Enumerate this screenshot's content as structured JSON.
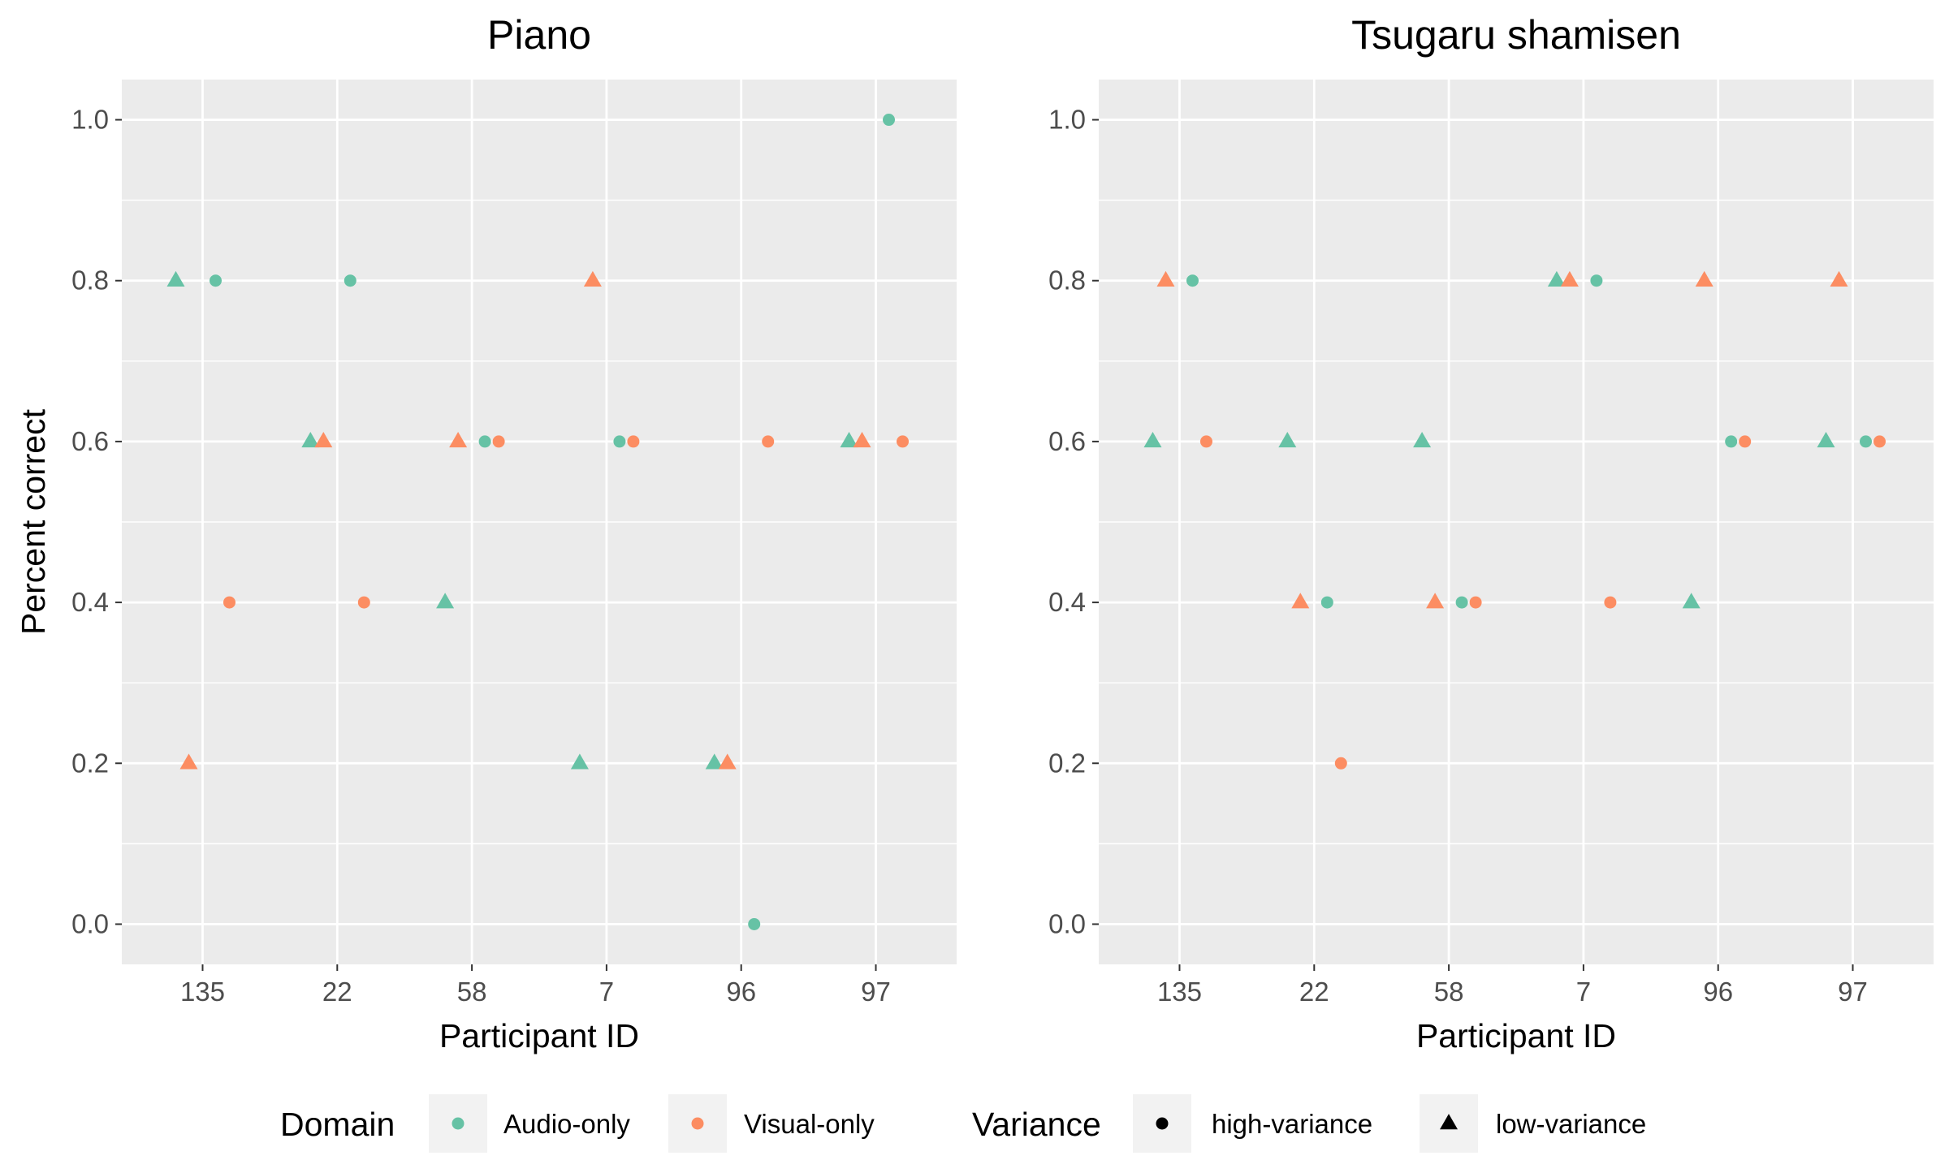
{
  "colors": {
    "audio_only": "#66c2a5",
    "visual_only": "#fc8d62",
    "panel_bg": "#ebebeb",
    "grid": "#ffffff",
    "legend_key_bg": "#f2f2f2",
    "variance_key": "#000000"
  },
  "chart_data": [
    {
      "type": "scatter",
      "title": "Piano",
      "xlabel": "Participant ID",
      "ylabel": "Percent correct",
      "categories": [
        "135",
        "22",
        "58",
        "7",
        "96",
        "97"
      ],
      "ylim": [
        -0.05,
        1.05
      ],
      "yticks": [
        "0.0",
        "0.2",
        "0.4",
        "0.6",
        "0.8",
        "1.0"
      ],
      "grid": true,
      "points": [
        {
          "x": "135",
          "domain": "Audio-only",
          "variance": "low-variance",
          "y": 0.8
        },
        {
          "x": "135",
          "domain": "Visual-only",
          "variance": "low-variance",
          "y": 0.2
        },
        {
          "x": "135",
          "domain": "Audio-only",
          "variance": "high-variance",
          "y": 0.8
        },
        {
          "x": "135",
          "domain": "Visual-only",
          "variance": "high-variance",
          "y": 0.4
        },
        {
          "x": "22",
          "domain": "Audio-only",
          "variance": "low-variance",
          "y": 0.6
        },
        {
          "x": "22",
          "domain": "Visual-only",
          "variance": "low-variance",
          "y": 0.6
        },
        {
          "x": "22",
          "domain": "Audio-only",
          "variance": "high-variance",
          "y": 0.8
        },
        {
          "x": "22",
          "domain": "Visual-only",
          "variance": "high-variance",
          "y": 0.4
        },
        {
          "x": "58",
          "domain": "Audio-only",
          "variance": "low-variance",
          "y": 0.4
        },
        {
          "x": "58",
          "domain": "Visual-only",
          "variance": "low-variance",
          "y": 0.6
        },
        {
          "x": "58",
          "domain": "Audio-only",
          "variance": "high-variance",
          "y": 0.6
        },
        {
          "x": "58",
          "domain": "Visual-only",
          "variance": "high-variance",
          "y": 0.6
        },
        {
          "x": "7",
          "domain": "Audio-only",
          "variance": "low-variance",
          "y": 0.2
        },
        {
          "x": "7",
          "domain": "Visual-only",
          "variance": "low-variance",
          "y": 0.8
        },
        {
          "x": "7",
          "domain": "Audio-only",
          "variance": "high-variance",
          "y": 0.6
        },
        {
          "x": "7",
          "domain": "Visual-only",
          "variance": "high-variance",
          "y": 0.6
        },
        {
          "x": "96",
          "domain": "Audio-only",
          "variance": "low-variance",
          "y": 0.2
        },
        {
          "x": "96",
          "domain": "Visual-only",
          "variance": "low-variance",
          "y": 0.2
        },
        {
          "x": "96",
          "domain": "Audio-only",
          "variance": "high-variance",
          "y": 0.0
        },
        {
          "x": "96",
          "domain": "Visual-only",
          "variance": "high-variance",
          "y": 0.6
        },
        {
          "x": "97",
          "domain": "Audio-only",
          "variance": "low-variance",
          "y": 0.6
        },
        {
          "x": "97",
          "domain": "Visual-only",
          "variance": "low-variance",
          "y": 0.6
        },
        {
          "x": "97",
          "domain": "Audio-only",
          "variance": "high-variance",
          "y": 1.0
        },
        {
          "x": "97",
          "domain": "Visual-only",
          "variance": "high-variance",
          "y": 0.6
        }
      ]
    },
    {
      "type": "scatter",
      "title": "Tsugaru shamisen",
      "xlabel": "Participant ID",
      "ylabel": "",
      "categories": [
        "135",
        "22",
        "58",
        "7",
        "96",
        "97"
      ],
      "ylim": [
        -0.05,
        1.05
      ],
      "yticks": [
        "0.0",
        "0.2",
        "0.4",
        "0.6",
        "0.8",
        "1.0"
      ],
      "grid": true,
      "points": [
        {
          "x": "135",
          "domain": "Audio-only",
          "variance": "low-variance",
          "y": 0.6
        },
        {
          "x": "135",
          "domain": "Visual-only",
          "variance": "low-variance",
          "y": 0.8
        },
        {
          "x": "135",
          "domain": "Audio-only",
          "variance": "high-variance",
          "y": 0.8
        },
        {
          "x": "135",
          "domain": "Visual-only",
          "variance": "high-variance",
          "y": 0.6
        },
        {
          "x": "22",
          "domain": "Audio-only",
          "variance": "low-variance",
          "y": 0.6
        },
        {
          "x": "22",
          "domain": "Visual-only",
          "variance": "low-variance",
          "y": 0.4
        },
        {
          "x": "22",
          "domain": "Audio-only",
          "variance": "high-variance",
          "y": 0.4
        },
        {
          "x": "22",
          "domain": "Visual-only",
          "variance": "high-variance",
          "y": 0.2
        },
        {
          "x": "58",
          "domain": "Audio-only",
          "variance": "low-variance",
          "y": 0.6
        },
        {
          "x": "58",
          "domain": "Visual-only",
          "variance": "low-variance",
          "y": 0.4
        },
        {
          "x": "58",
          "domain": "Audio-only",
          "variance": "high-variance",
          "y": 0.4
        },
        {
          "x": "58",
          "domain": "Visual-only",
          "variance": "high-variance",
          "y": 0.4
        },
        {
          "x": "7",
          "domain": "Audio-only",
          "variance": "low-variance",
          "y": 0.8
        },
        {
          "x": "7",
          "domain": "Visual-only",
          "variance": "low-variance",
          "y": 0.8
        },
        {
          "x": "7",
          "domain": "Audio-only",
          "variance": "high-variance",
          "y": 0.8
        },
        {
          "x": "7",
          "domain": "Visual-only",
          "variance": "high-variance",
          "y": 0.4
        },
        {
          "x": "96",
          "domain": "Audio-only",
          "variance": "low-variance",
          "y": 0.4
        },
        {
          "x": "96",
          "domain": "Visual-only",
          "variance": "low-variance",
          "y": 0.8
        },
        {
          "x": "96",
          "domain": "Audio-only",
          "variance": "high-variance",
          "y": 0.6
        },
        {
          "x": "96",
          "domain": "Visual-only",
          "variance": "high-variance",
          "y": 0.6
        },
        {
          "x": "97",
          "domain": "Audio-only",
          "variance": "low-variance",
          "y": 0.6
        },
        {
          "x": "97",
          "domain": "Visual-only",
          "variance": "low-variance",
          "y": 0.8
        },
        {
          "x": "97",
          "domain": "Audio-only",
          "variance": "high-variance",
          "y": 0.6
        },
        {
          "x": "97",
          "domain": "Visual-only",
          "variance": "high-variance",
          "y": 0.6
        }
      ]
    }
  ],
  "legend": {
    "placement": "bottom",
    "domain_title": "Domain",
    "domain_items": [
      "Audio-only",
      "Visual-only"
    ],
    "variance_title": "Variance",
    "variance_items": [
      "high-variance",
      "low-variance"
    ]
  }
}
